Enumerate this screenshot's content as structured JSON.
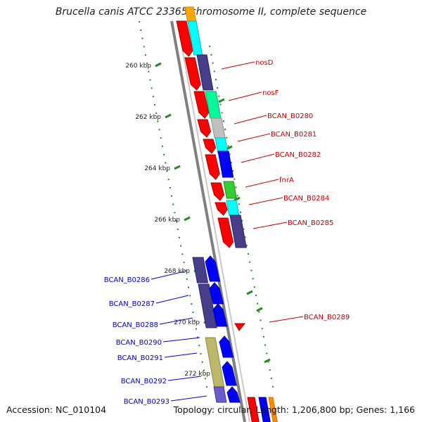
{
  "title": "Brucella canis ATCC 23365 chromosome II, complete sequence",
  "footer": {
    "accession": "Accession: NC_010104",
    "summary": "Topology: circular; Length: 1,206,800 bp; Genes: 1,166"
  },
  "colors": {
    "forward_red": "#ff0000",
    "reverse_blue": "#0000ff",
    "label_red": "#cc0000",
    "label_blue": "#0000cc",
    "backbone": "#808080",
    "ticks": "#228b22"
  },
  "ticks": [
    "260 kbp",
    "262 kbp",
    "264 kbp",
    "266 kbp",
    "268 kbp",
    "270 kbp",
    "272 kbp"
  ],
  "forward_labels": [
    "nosD",
    "nosF",
    "BCAN_B0280",
    "BCAN_B0281",
    "BCAN_B0282",
    "fnrA",
    "BCAN_B0284",
    "BCAN_B0285",
    "BCAN_B0289"
  ],
  "reverse_labels": [
    "BCAN_B0286",
    "BCAN_B0287",
    "BCAN_B0288",
    "BCAN_B0290",
    "BCAN_B0291",
    "BCAN_B0292",
    "BCAN_B0293"
  ]
}
